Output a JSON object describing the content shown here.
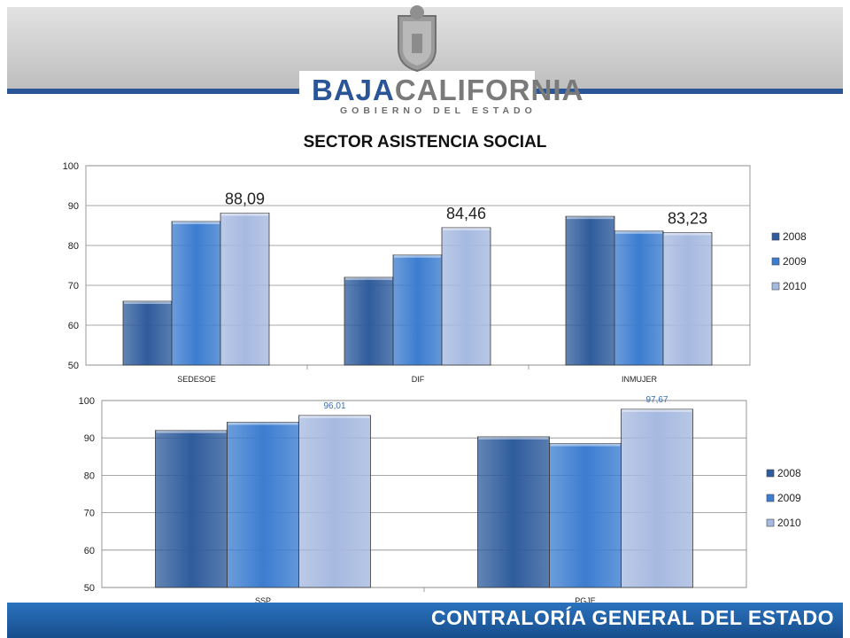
{
  "header": {
    "logo_primary": "BAJA",
    "logo_secondary": "CALIFORNIA",
    "logo_subtitle": "GOBIERNO DEL ESTADO"
  },
  "footer": {
    "text": "CONTRALORÍA GENERAL DEL ESTADO"
  },
  "colors": {
    "header_gray": "#c7c7c7",
    "footer_blue": "#1f5fa6",
    "s2008": "#2f5c9c",
    "s2009": "#3c7dd0",
    "s2010": "#a6b9e0"
  },
  "chart_data": [
    {
      "type": "bar",
      "title": "SECTOR ASISTENCIA SOCIAL",
      "categories": [
        "SEDESOE",
        "DIF",
        "INMUJER"
      ],
      "series": [
        {
          "name": "2008",
          "values": [
            66,
            72,
            87.3
          ]
        },
        {
          "name": "2009",
          "values": [
            86,
            77.6,
            83.6
          ]
        },
        {
          "name": "2010",
          "values": [
            88.09,
            84.46,
            83.23
          ]
        }
      ],
      "data_labels": [
        "88,09",
        "84,46",
        "83,23"
      ],
      "ylim": [
        50,
        100
      ],
      "yticks": [
        50,
        60,
        70,
        80,
        90,
        100
      ],
      "grid": true,
      "legend": "right"
    },
    {
      "type": "bar",
      "title": "",
      "categories": [
        "SSP",
        "PGJE"
      ],
      "series": [
        {
          "name": "2008",
          "values": [
            92,
            90.3
          ]
        },
        {
          "name": "2009",
          "values": [
            94.2,
            88.5
          ]
        },
        {
          "name": "2010",
          "values": [
            96.01,
            97.67
          ]
        }
      ],
      "data_labels": [
        "96,01",
        "97,67"
      ],
      "ylim": [
        50,
        100
      ],
      "yticks": [
        50,
        60,
        70,
        80,
        90,
        100
      ],
      "grid": true,
      "legend": "right"
    }
  ]
}
